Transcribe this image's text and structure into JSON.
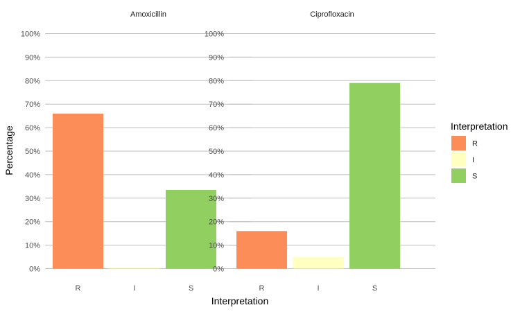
{
  "chart_data": {
    "type": "bar",
    "xlabel": "Interpretation",
    "ylabel": "Percentage",
    "ylim": [
      0,
      100
    ],
    "yticks": [
      "0%",
      "10%",
      "20%",
      "30%",
      "40%",
      "50%",
      "60%",
      "70%",
      "80%",
      "90%",
      "100%"
    ],
    "categories": [
      "R",
      "I",
      "S"
    ],
    "colors": {
      "R": "#fc8d59",
      "I": "#ffffbf",
      "S": "#91cf60"
    },
    "grid": true,
    "legend": {
      "title": "Interpretation",
      "position": "right",
      "entries": [
        "R",
        "I",
        "S"
      ]
    },
    "panels": [
      {
        "title": "Amoxicillin",
        "values": [
          66,
          0.5,
          33.5
        ]
      },
      {
        "title": "Ciprofloxacin",
        "values": [
          16,
          5,
          79
        ]
      }
    ]
  }
}
